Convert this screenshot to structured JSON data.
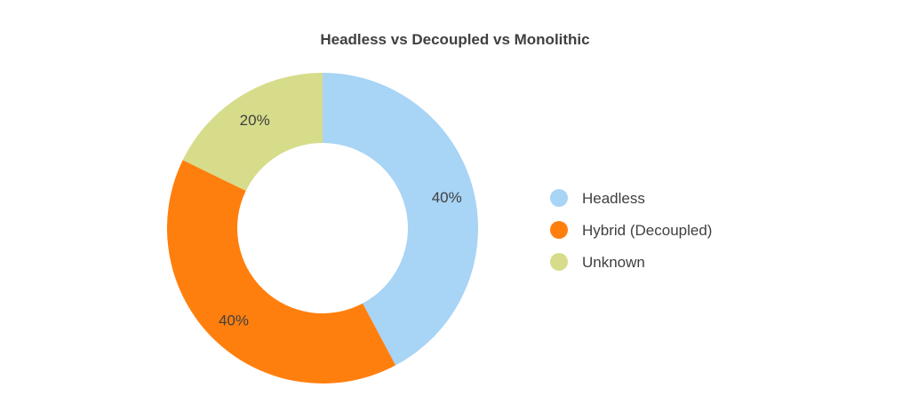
{
  "chart_data": {
    "type": "pie",
    "title": "Headless vs Decoupled vs Monolithic",
    "hole": true,
    "legend_position": "right",
    "slices": [
      {
        "label": "Headless",
        "value": 40,
        "value_label": "40%",
        "color": "#a8d4f5"
      },
      {
        "label": "Hybrid (Decoupled)",
        "value": 40,
        "value_label": "40%",
        "color": "#ff7f0e"
      },
      {
        "label": "Unknown",
        "value": 20,
        "value_label": "20%",
        "color": "#d6dc8a"
      }
    ]
  }
}
